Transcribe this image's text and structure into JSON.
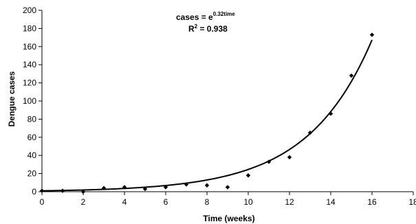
{
  "chart_data": {
    "type": "scatter",
    "xlabel": "Time (weeks)",
    "ylabel": "Dengue cases",
    "xlim": [
      0,
      18
    ],
    "ylim": [
      0,
      200
    ],
    "xticks": [
      "0",
      "2",
      "4",
      "6",
      "8",
      "10",
      "12",
      "14",
      "16",
      "18"
    ],
    "yticks": [
      "0",
      "20",
      "40",
      "60",
      "80",
      "100",
      "120",
      "140",
      "160",
      "180",
      "200"
    ],
    "grid": false,
    "points": [
      {
        "x": 0,
        "y": 1
      },
      {
        "x": 1,
        "y": 1
      },
      {
        "x": 2,
        "y": 0
      },
      {
        "x": 3,
        "y": 4
      },
      {
        "x": 4,
        "y": 5
      },
      {
        "x": 5,
        "y": 3
      },
      {
        "x": 6,
        "y": 5
      },
      {
        "x": 7,
        "y": 8
      },
      {
        "x": 8,
        "y": 7
      },
      {
        "x": 9,
        "y": 5
      },
      {
        "x": 10,
        "y": 18
      },
      {
        "x": 11,
        "y": 33
      },
      {
        "x": 12,
        "y": 38
      },
      {
        "x": 13,
        "y": 65
      },
      {
        "x": 14,
        "y": 86
      },
      {
        "x": 15,
        "y": 128
      },
      {
        "x": 16,
        "y": 173
      }
    ],
    "trendline": {
      "type": "exponential",
      "coefficient": 0.32,
      "x_range": [
        0,
        16
      ]
    },
    "annotation": {
      "eq_base": "cases = e",
      "eq_exponent": "0.32time",
      "r2_prefix": "R",
      "r2_exponent": "2",
      "r2_value": " = 0.938"
    }
  }
}
